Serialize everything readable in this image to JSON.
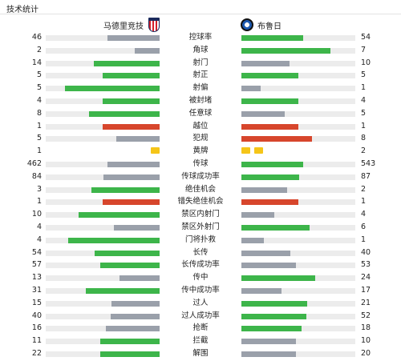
{
  "section_title": "技术统计",
  "teams": {
    "home": {
      "name": "马德里竞技",
      "badge_icon": "atletico-madrid-crest-icon"
    },
    "away": {
      "name": "布鲁日",
      "badge_icon": "club-brugge-crest-icon"
    }
  },
  "colors": {
    "green": "#3db54a",
    "red": "#d7462c",
    "gray": "#9aa0aa",
    "track": "#ececec",
    "yellow_card": "#f5c518"
  },
  "stats": [
    {
      "label": "控球率",
      "home": "46",
      "away": "54",
      "home_fill": 0.46,
      "away_fill": 0.54,
      "home_color": "gray",
      "away_color": "green"
    },
    {
      "label": "角球",
      "home": "2",
      "away": "7",
      "home_fill": 0.22,
      "away_fill": 0.78,
      "home_color": "gray",
      "away_color": "green"
    },
    {
      "label": "射门",
      "home": "14",
      "away": "10",
      "home_fill": 0.58,
      "away_fill": 0.42,
      "home_color": "green",
      "away_color": "gray"
    },
    {
      "label": "射正",
      "home": "5",
      "away": "5",
      "home_fill": 0.5,
      "away_fill": 0.5,
      "home_color": "green",
      "away_color": "green"
    },
    {
      "label": "射偏",
      "home": "5",
      "away": "1",
      "home_fill": 0.83,
      "away_fill": 0.17,
      "home_color": "green",
      "away_color": "gray"
    },
    {
      "label": "被封堵",
      "home": "4",
      "away": "4",
      "home_fill": 0.5,
      "away_fill": 0.5,
      "home_color": "green",
      "away_color": "green"
    },
    {
      "label": "任意球",
      "home": "8",
      "away": "5",
      "home_fill": 0.62,
      "away_fill": 0.38,
      "home_color": "green",
      "away_color": "gray"
    },
    {
      "label": "越位",
      "home": "1",
      "away": "1",
      "home_fill": 0.5,
      "away_fill": 0.5,
      "home_color": "red",
      "away_color": "red"
    },
    {
      "label": "犯规",
      "home": "5",
      "away": "8",
      "home_fill": 0.38,
      "away_fill": 0.62,
      "home_color": "gray",
      "away_color": "red"
    },
    {
      "label": "黄牌",
      "home": "1",
      "away": "2",
      "home_cards": 1,
      "away_cards": 2,
      "type": "cards"
    },
    {
      "label": "传球",
      "home": "462",
      "away": "543",
      "home_fill": 0.46,
      "away_fill": 0.54,
      "home_color": "gray",
      "away_color": "green"
    },
    {
      "label": "传球成功率",
      "home": "84",
      "away": "87",
      "home_fill": 0.49,
      "away_fill": 0.51,
      "home_color": "gray",
      "away_color": "green"
    },
    {
      "label": "绝佳机会",
      "home": "3",
      "away": "2",
      "home_fill": 0.6,
      "away_fill": 0.4,
      "home_color": "green",
      "away_color": "gray"
    },
    {
      "label": "错失绝佳机会",
      "home": "1",
      "away": "1",
      "home_fill": 0.5,
      "away_fill": 0.5,
      "home_color": "red",
      "away_color": "red"
    },
    {
      "label": "禁区内射门",
      "home": "10",
      "away": "4",
      "home_fill": 0.71,
      "away_fill": 0.29,
      "home_color": "green",
      "away_color": "gray"
    },
    {
      "label": "禁区外射门",
      "home": "4",
      "away": "6",
      "home_fill": 0.4,
      "away_fill": 0.6,
      "home_color": "gray",
      "away_color": "green"
    },
    {
      "label": "门将扑救",
      "home": "4",
      "away": "1",
      "home_fill": 0.8,
      "away_fill": 0.2,
      "home_color": "green",
      "away_color": "gray"
    },
    {
      "label": "长传",
      "home": "54",
      "away": "40",
      "home_fill": 0.57,
      "away_fill": 0.43,
      "home_color": "green",
      "away_color": "gray"
    },
    {
      "label": "长传成功率",
      "home": "57",
      "away": "53",
      "home_fill": 0.52,
      "away_fill": 0.48,
      "home_color": "green",
      "away_color": "gray"
    },
    {
      "label": "传中",
      "home": "13",
      "away": "24",
      "home_fill": 0.35,
      "away_fill": 0.65,
      "home_color": "gray",
      "away_color": "green"
    },
    {
      "label": "传中成功率",
      "home": "31",
      "away": "17",
      "home_fill": 0.65,
      "away_fill": 0.35,
      "home_color": "green",
      "away_color": "gray"
    },
    {
      "label": "过人",
      "home": "15",
      "away": "21",
      "home_fill": 0.42,
      "away_fill": 0.58,
      "home_color": "gray",
      "away_color": "green"
    },
    {
      "label": "过人成功率",
      "home": "40",
      "away": "52",
      "home_fill": 0.43,
      "away_fill": 0.57,
      "home_color": "gray",
      "away_color": "green"
    },
    {
      "label": "抢断",
      "home": "16",
      "away": "18",
      "home_fill": 0.47,
      "away_fill": 0.53,
      "home_color": "gray",
      "away_color": "green"
    },
    {
      "label": "拦截",
      "home": "11",
      "away": "10",
      "home_fill": 0.52,
      "away_fill": 0.48,
      "home_color": "green",
      "away_color": "gray"
    },
    {
      "label": "解围",
      "home": "22",
      "away": "20",
      "home_fill": 0.52,
      "away_fill": 0.48,
      "home_color": "green",
      "away_color": "gray"
    }
  ]
}
